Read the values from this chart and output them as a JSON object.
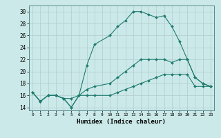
{
  "title": "",
  "xlabel": "Humidex (Indice chaleur)",
  "xlim": [
    -0.5,
    23.5
  ],
  "ylim": [
    13.5,
    31.0
  ],
  "xticks": [
    0,
    1,
    2,
    3,
    4,
    5,
    6,
    7,
    8,
    9,
    10,
    11,
    12,
    13,
    14,
    15,
    16,
    17,
    18,
    19,
    20,
    21,
    22,
    23
  ],
  "yticks": [
    14,
    16,
    18,
    20,
    22,
    24,
    26,
    28,
    30
  ],
  "background_color": "#cce9e9",
  "grid_color": "#b0cccc",
  "line_color": "#1e7b6e",
  "curves": [
    {
      "x": [
        0,
        1,
        2,
        3,
        4,
        5,
        6,
        7,
        8,
        10,
        11,
        12,
        13,
        14,
        15,
        16,
        17,
        18,
        19,
        20,
        21,
        22,
        23
      ],
      "y": [
        16.5,
        15.0,
        16.0,
        16.0,
        15.5,
        15.5,
        16.0,
        21.0,
        24.5,
        26.0,
        27.5,
        28.5,
        30.0,
        30.0,
        29.5,
        29.0,
        29.3,
        27.5,
        25.0,
        22.0,
        19.0,
        18.0,
        17.5
      ]
    },
    {
      "x": [
        0,
        1,
        2,
        3,
        4,
        5,
        6,
        7,
        8,
        10,
        11,
        12,
        13,
        14,
        15,
        16,
        17,
        18,
        19,
        20,
        21,
        22,
        23
      ],
      "y": [
        16.5,
        15.0,
        16.0,
        16.0,
        15.5,
        14.0,
        16.0,
        17.0,
        17.5,
        18.0,
        19.0,
        20.0,
        21.0,
        22.0,
        22.0,
        22.0,
        22.0,
        21.5,
        22.0,
        22.0,
        19.0,
        18.0,
        17.5
      ]
    },
    {
      "x": [
        0,
        1,
        2,
        3,
        4,
        5,
        6,
        7,
        8,
        10,
        11,
        12,
        13,
        14,
        15,
        16,
        17,
        18,
        19,
        20,
        21,
        22,
        23
      ],
      "y": [
        16.5,
        15.0,
        16.0,
        16.0,
        15.5,
        14.0,
        16.0,
        16.0,
        16.0,
        16.0,
        16.5,
        17.0,
        17.5,
        18.0,
        18.5,
        19.0,
        19.5,
        19.5,
        19.5,
        19.5,
        17.5,
        17.5,
        17.5
      ]
    }
  ]
}
